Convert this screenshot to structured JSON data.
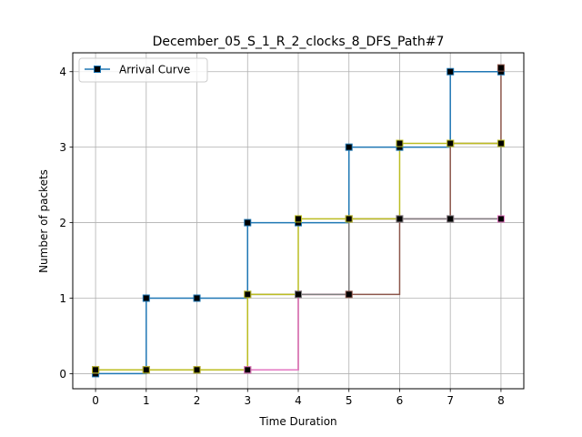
{
  "chart_data": {
    "type": "line",
    "title": "December_05_S_1_R_2_clocks_8_DFS_Path#7",
    "xlabel": "Time Duration",
    "ylabel": "Number of packets",
    "xlim": [
      -0.45,
      8.45
    ],
    "ylim": [
      -0.2,
      4.25
    ],
    "xticks": [
      0,
      1,
      2,
      3,
      4,
      5,
      6,
      7,
      8
    ],
    "yticks": [
      0,
      1,
      2,
      3,
      4
    ],
    "grid": true,
    "step": "post",
    "legend": {
      "placement": "top-left",
      "entries": [
        "Arrival Curve"
      ]
    },
    "series": [
      {
        "name": "Arrival Curve",
        "color": "#1f77b4",
        "marker": "square",
        "markerFace": "#000000",
        "x": [
          0,
          1,
          2,
          3,
          4,
          5,
          6,
          7,
          8
        ],
        "y": [
          0,
          1,
          1,
          2,
          2,
          3,
          3,
          4,
          4
        ]
      },
      {
        "color": "#8c564b",
        "marker": "square",
        "markerFace": "#000000",
        "x": [
          0,
          1,
          2,
          3,
          4,
          5,
          6,
          7,
          8
        ],
        "y": [
          0.05,
          0.05,
          0.05,
          0.05,
          1.05,
          1.05,
          2.05,
          3.05,
          4.05
        ]
      },
      {
        "color": "#e377c2",
        "marker": "square",
        "markerFace": "#000000",
        "x": [
          0,
          1,
          2,
          3,
          4,
          5,
          6,
          7,
          8
        ],
        "y": [
          0.05,
          0.05,
          0.05,
          0.05,
          1.05,
          2.05,
          2.05,
          2.05,
          2.05
        ]
      },
      {
        "color": "#7f7f7f",
        "marker": "square",
        "markerFace": "#000000",
        "x": [
          0,
          1,
          2,
          3,
          4,
          5,
          6,
          7,
          8
        ],
        "y": [
          0.05,
          0.05,
          0.05,
          1.05,
          1.05,
          2.05,
          2.05,
          2.05,
          3.05
        ]
      },
      {
        "color": "#bcbd22",
        "marker": "square",
        "markerFace": "#000000",
        "x": [
          0,
          1,
          2,
          3,
          4,
          5,
          6,
          7,
          8
        ],
        "y": [
          0.05,
          0.05,
          0.05,
          1.05,
          2.05,
          2.05,
          3.05,
          3.05,
          3.05
        ]
      }
    ]
  }
}
